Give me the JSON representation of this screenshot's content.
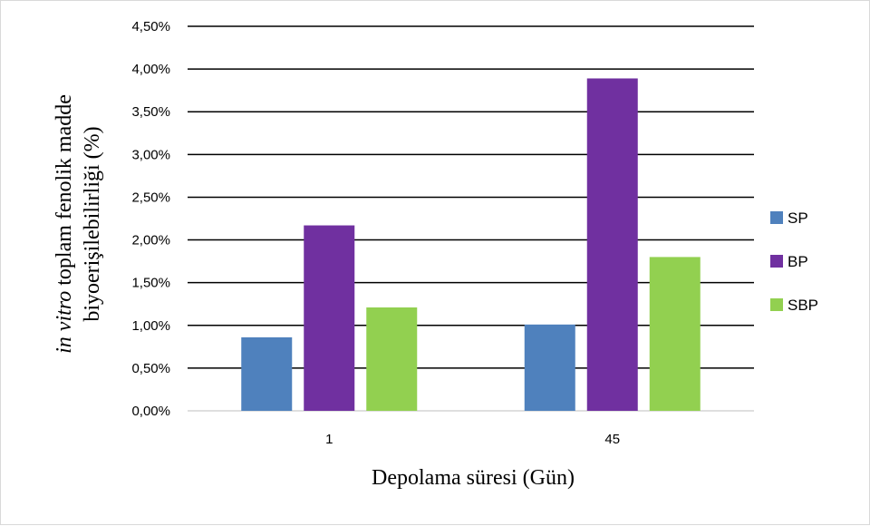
{
  "chart_data": {
    "type": "bar",
    "categories": [
      "1",
      "45"
    ],
    "series": [
      {
        "name": "SP",
        "color": "#4f81bd",
        "values": [
          0.86,
          1.01
        ]
      },
      {
        "name": "BP",
        "color": "#7030a0",
        "values": [
          2.17,
          3.89
        ]
      },
      {
        "name": "SBP",
        "color": "#92d050",
        "values": [
          1.21,
          1.8
        ]
      }
    ],
    "ylim": [
      0,
      4.5
    ],
    "yticks": [
      "0,00%",
      "0,50%",
      "1,00%",
      "1,50%",
      "2,00%",
      "2,50%",
      "3,00%",
      "3,50%",
      "4,00%",
      "4,50%"
    ],
    "xlabel": "Depolama süresi (Gün)",
    "ylabel_italic": "in vitro",
    "ylabel_rest": " toplam fenolik madde",
    "ylabel_line2": "biyoerişilebilirliği (%)",
    "grid": true,
    "legend": "right"
  }
}
